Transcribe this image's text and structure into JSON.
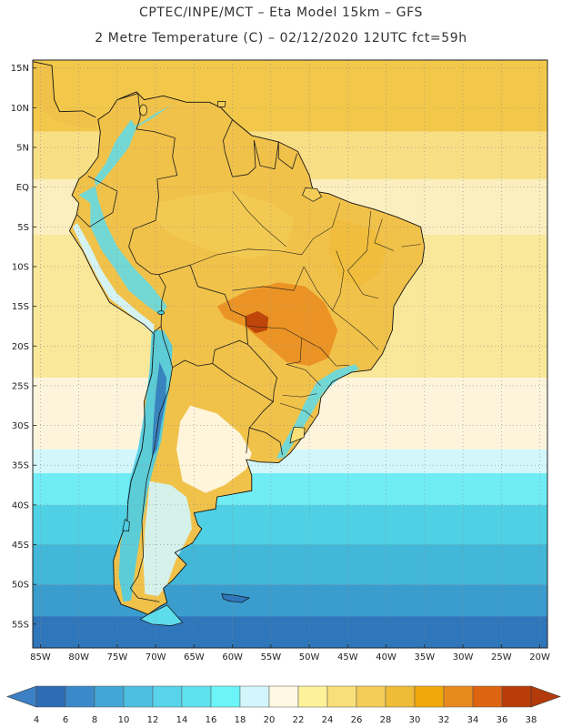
{
  "header": {
    "line1": "CPTEC/INPE/MCT –  Eta Model 15km – GFS",
    "line2": "2 Metre Temperature (C) – 02/12/2020 12UTC fct=59h"
  },
  "map": {
    "lon_range": [
      -86,
      -19
    ],
    "lat_range": [
      -58,
      16
    ],
    "lat_labels": [
      {
        "value": 15,
        "label": "15N"
      },
      {
        "value": 10,
        "label": "10N"
      },
      {
        "value": 5,
        "label": "5N"
      },
      {
        "value": 0,
        "label": "EQ"
      },
      {
        "value": -5,
        "label": "5S"
      },
      {
        "value": -10,
        "label": "10S"
      },
      {
        "value": -15,
        "label": "15S"
      },
      {
        "value": -20,
        "label": "20S"
      },
      {
        "value": -25,
        "label": "25S"
      },
      {
        "value": -30,
        "label": "30S"
      },
      {
        "value": -35,
        "label": "35S"
      },
      {
        "value": -40,
        "label": "40S"
      },
      {
        "value": -45,
        "label": "45S"
      },
      {
        "value": -50,
        "label": "50S"
      },
      {
        "value": -55,
        "label": "55S"
      }
    ],
    "lon_labels": [
      {
        "value": -85,
        "label": "85W"
      },
      {
        "value": -80,
        "label": "80W"
      },
      {
        "value": -75,
        "label": "75W"
      },
      {
        "value": -70,
        "label": "70W"
      },
      {
        "value": -65,
        "label": "65W"
      },
      {
        "value": -60,
        "label": "60W"
      },
      {
        "value": -55,
        "label": "55W"
      },
      {
        "value": -50,
        "label": "50W"
      },
      {
        "value": -45,
        "label": "45W"
      },
      {
        "value": -40,
        "label": "40W"
      },
      {
        "value": -35,
        "label": "35W"
      },
      {
        "value": -30,
        "label": "30W"
      },
      {
        "value": -25,
        "label": "25W"
      },
      {
        "value": -20,
        "label": "20W"
      }
    ],
    "ocean_bands": [
      {
        "from": 16,
        "to": 7,
        "color": "#f3c84a"
      },
      {
        "from": 7,
        "to": 1,
        "color": "#f8df86"
      },
      {
        "from": 1,
        "to": -6,
        "color": "#fbeebf"
      },
      {
        "from": -6,
        "to": -24,
        "color": "#f9e79a"
      },
      {
        "from": -24,
        "to": -33,
        "color": "#fcf5dc"
      },
      {
        "from": -33,
        "to": -36,
        "color": "#d3f6fb"
      },
      {
        "from": -36,
        "to": -40,
        "color": "#70ecf4"
      },
      {
        "from": -40,
        "to": -45,
        "color": "#4fd0e4"
      },
      {
        "from": -45,
        "to": -50,
        "color": "#42b7d8"
      },
      {
        "from": -50,
        "to": -54,
        "color": "#3a9dcd"
      },
      {
        "from": -54,
        "to": -58,
        "color": "#2f76bb"
      }
    ],
    "land_base_color": "#f1c24a"
  },
  "colorbar": {
    "min_color": "#3c7fc4",
    "max_color": "#b33a0b",
    "colors": [
      "#2e6db5",
      "#3a89c9",
      "#43a7d6",
      "#4dbfe0",
      "#57d3ea",
      "#5fe2f0",
      "#6bf5f8",
      "#d2f6fc",
      "#fff8e3",
      "#fdf29a",
      "#f8df78",
      "#f3cd58",
      "#efbc38",
      "#f0a80a",
      "#e98a1d",
      "#dd6410",
      "#b93d09"
    ],
    "labels": [
      "4",
      "6",
      "8",
      "10",
      "12",
      "14",
      "16",
      "18",
      "20",
      "22",
      "24",
      "26",
      "28",
      "30",
      "32",
      "34",
      "36",
      "38"
    ]
  }
}
